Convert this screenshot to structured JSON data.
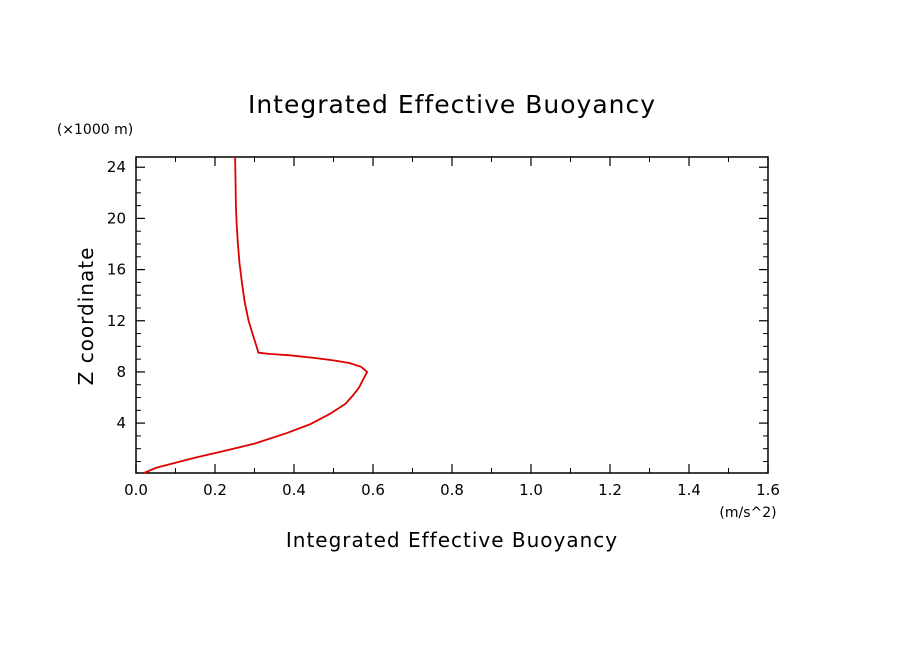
{
  "chart_data": {
    "type": "line",
    "title": "Integrated Effective Buoyancy",
    "xlabel": "Integrated Effective Buoyancy",
    "ylabel": "Z coordinate",
    "x_unit": "(m/s^2)",
    "y_unit": "(×1000 m)",
    "xlim": [
      0.0,
      1.6
    ],
    "ylim": [
      0.1,
      24.8
    ],
    "x_ticks": [
      0.0,
      0.2,
      0.4,
      0.6,
      0.8,
      1.0,
      1.2,
      1.4,
      1.6
    ],
    "x_tick_labels": [
      "0.0",
      "0.2",
      "0.4",
      "0.6",
      "0.8",
      "1.0",
      "1.2",
      "1.4",
      "1.6"
    ],
    "y_ticks": [
      4,
      8,
      12,
      16,
      20,
      24
    ],
    "y_tick_labels": [
      "4",
      "8",
      "12",
      "16",
      "20",
      "24"
    ],
    "grid": false,
    "series": [
      {
        "color": "#dd0000",
        "x": [
          0.02,
          0.05,
          0.1,
          0.15,
          0.22,
          0.3,
          0.38,
          0.44,
          0.49,
          0.53,
          0.55,
          0.565,
          0.575,
          0.585,
          0.57,
          0.54,
          0.5,
          0.45,
          0.39,
          0.34,
          0.31,
          0.305,
          0.295,
          0.285,
          0.275,
          0.268,
          0.262,
          0.258,
          0.255,
          0.253,
          0.252,
          0.251
        ],
        "y": [
          0.1,
          0.5,
          0.9,
          1.3,
          1.8,
          2.4,
          3.2,
          3.9,
          4.7,
          5.5,
          6.2,
          6.8,
          7.4,
          8.0,
          8.4,
          8.7,
          8.9,
          9.1,
          9.3,
          9.4,
          9.5,
          10.0,
          11.0,
          12.0,
          13.5,
          15.0,
          16.5,
          18.0,
          19.5,
          21.0,
          23.0,
          24.8
        ]
      }
    ]
  }
}
